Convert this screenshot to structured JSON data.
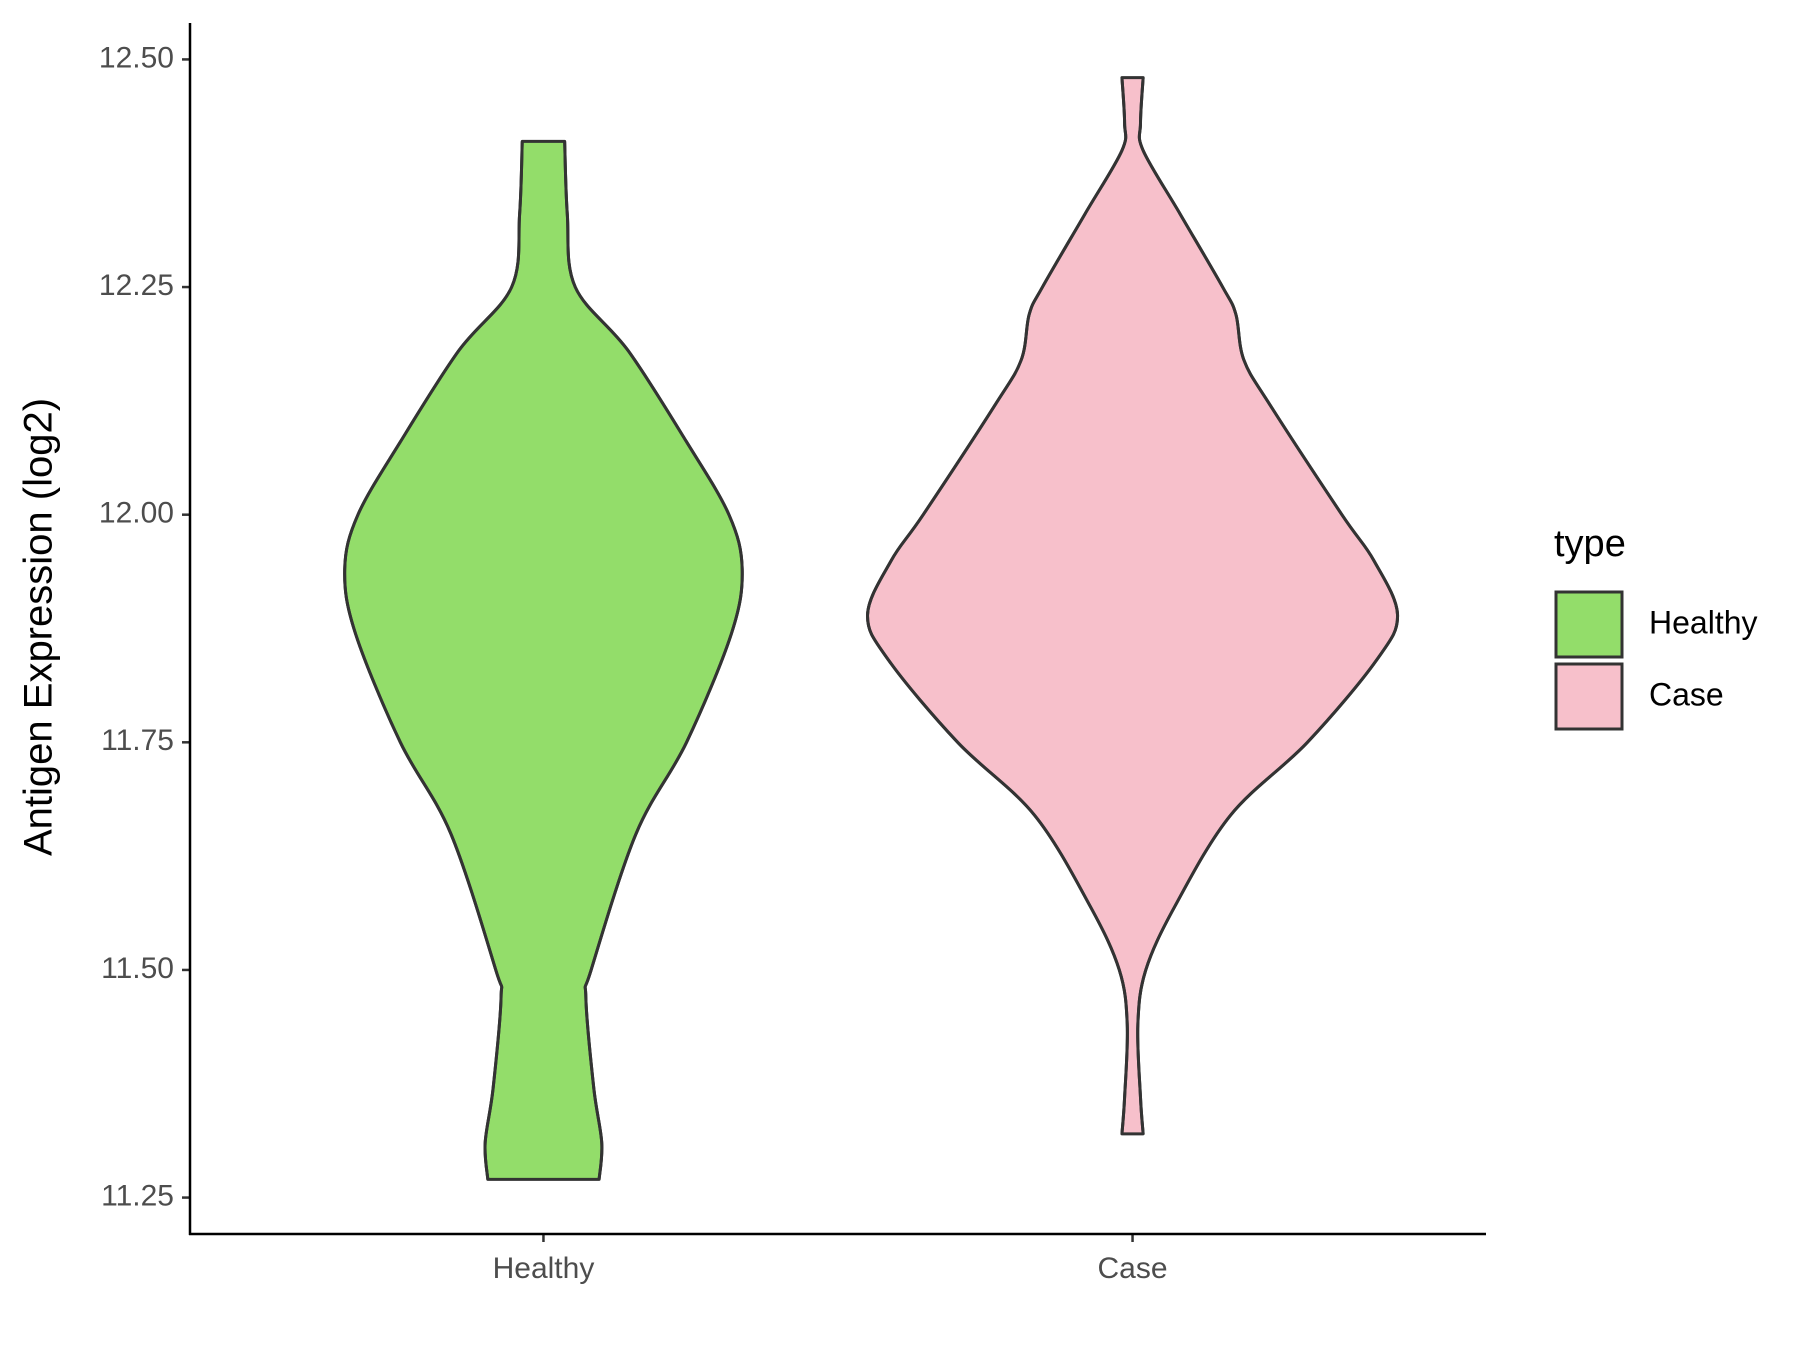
{
  "chart_data": {
    "type": "violin",
    "y_label": "Antigen Expression (log2)",
    "legend_title": "type",
    "categories": [
      "Healthy",
      "Case"
    ],
    "ylim": [
      11.21,
      12.54
    ],
    "yticks": [
      11.25,
      {
        "value": 11.5,
        "label": "11.50"
      },
      11.75,
      {
        "value": 12,
        "label": "12.00"
      },
      12.25,
      {
        "value": 12.5,
        "label": "12.50"
      }
    ],
    "grid": false,
    "series": [
      {
        "name": "Healthy",
        "color": "#93dd6a",
        "values": [
          12.41,
          12.33,
          12.25,
          12.18,
          12.08,
          12.0,
          11.94,
          11.87,
          11.75,
          11.65,
          11.5,
          11.47,
          11.37,
          11.31,
          11.27
        ],
        "widths": [
          0.08,
          0.09,
          0.12,
          0.32,
          0.54,
          0.7,
          0.75,
          0.71,
          0.54,
          0.35,
          0.18,
          0.16,
          0.19,
          0.22,
          0.21
        ]
      },
      {
        "name": "Case",
        "color": "#f7c0cb",
        "values": [
          12.48,
          12.43,
          12.4,
          12.33,
          12.25,
          12.22,
          12.17,
          12.12,
          12.0,
          11.95,
          11.89,
          11.84,
          11.75,
          11.67,
          11.57,
          11.5,
          11.44,
          11.36,
          11.32
        ],
        "widths": [
          0.04,
          0.03,
          0.04,
          0.18,
          0.34,
          0.39,
          0.42,
          0.52,
          0.79,
          0.91,
          1,
          0.92,
          0.66,
          0.37,
          0.16,
          0.05,
          0.02,
          0.03,
          0.04
        ]
      }
    ]
  }
}
